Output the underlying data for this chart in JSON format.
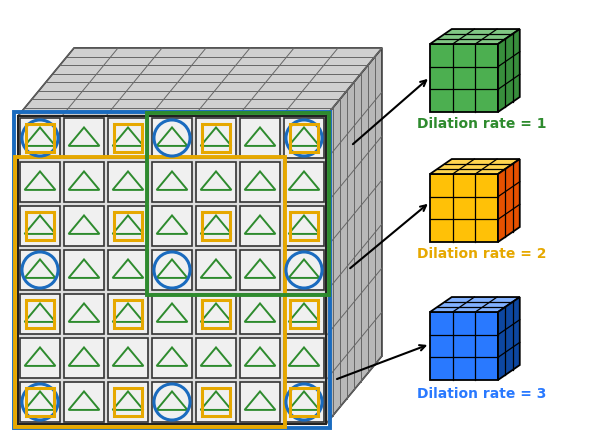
{
  "grid_rows": 7,
  "grid_cols": 7,
  "cell_size": 44,
  "bg_color": "#ffffff",
  "cell_bg": "#e8e8e8",
  "cell_border": "#222222",
  "triangle_color": "#2e8b2e",
  "blue_border_color": "#1a6bbf",
  "orange_border_color": "#e6a800",
  "green_border_color": "#2e8b2e",
  "blue_circle_cells": [
    [
      0,
      0
    ],
    [
      0,
      3
    ],
    [
      0,
      6
    ],
    [
      3,
      0
    ],
    [
      3,
      3
    ],
    [
      3,
      6
    ],
    [
      6,
      0
    ],
    [
      6,
      3
    ],
    [
      6,
      6
    ]
  ],
  "orange_square_cells": [
    [
      0,
      0
    ],
    [
      0,
      2
    ],
    [
      0,
      4
    ],
    [
      0,
      6
    ],
    [
      2,
      0
    ],
    [
      2,
      2
    ],
    [
      2,
      4
    ],
    [
      2,
      6
    ],
    [
      4,
      0
    ],
    [
      4,
      2
    ],
    [
      4,
      4
    ],
    [
      4,
      6
    ],
    [
      6,
      0
    ],
    [
      6,
      2
    ],
    [
      6,
      4
    ],
    [
      6,
      6
    ]
  ],
  "cube_green_face": "#4caf50",
  "cube_green_top": "#81c784",
  "cube_green_side": "#388e3c",
  "cube_orange_face": "#ffc107",
  "cube_orange_top": "#ffd54f",
  "cube_orange_side": "#e65100",
  "cube_blue_face": "#2979ff",
  "cube_blue_top": "#82b1ff",
  "cube_blue_side": "#0d47a1",
  "label_green": "Dilation rate = 1",
  "label_orange": "Dilation rate = 2",
  "label_blue": "Dilation rate = 3",
  "label_green_color": "#2e8b2e",
  "label_orange_color": "#e6a800",
  "label_blue_color": "#2979ff"
}
